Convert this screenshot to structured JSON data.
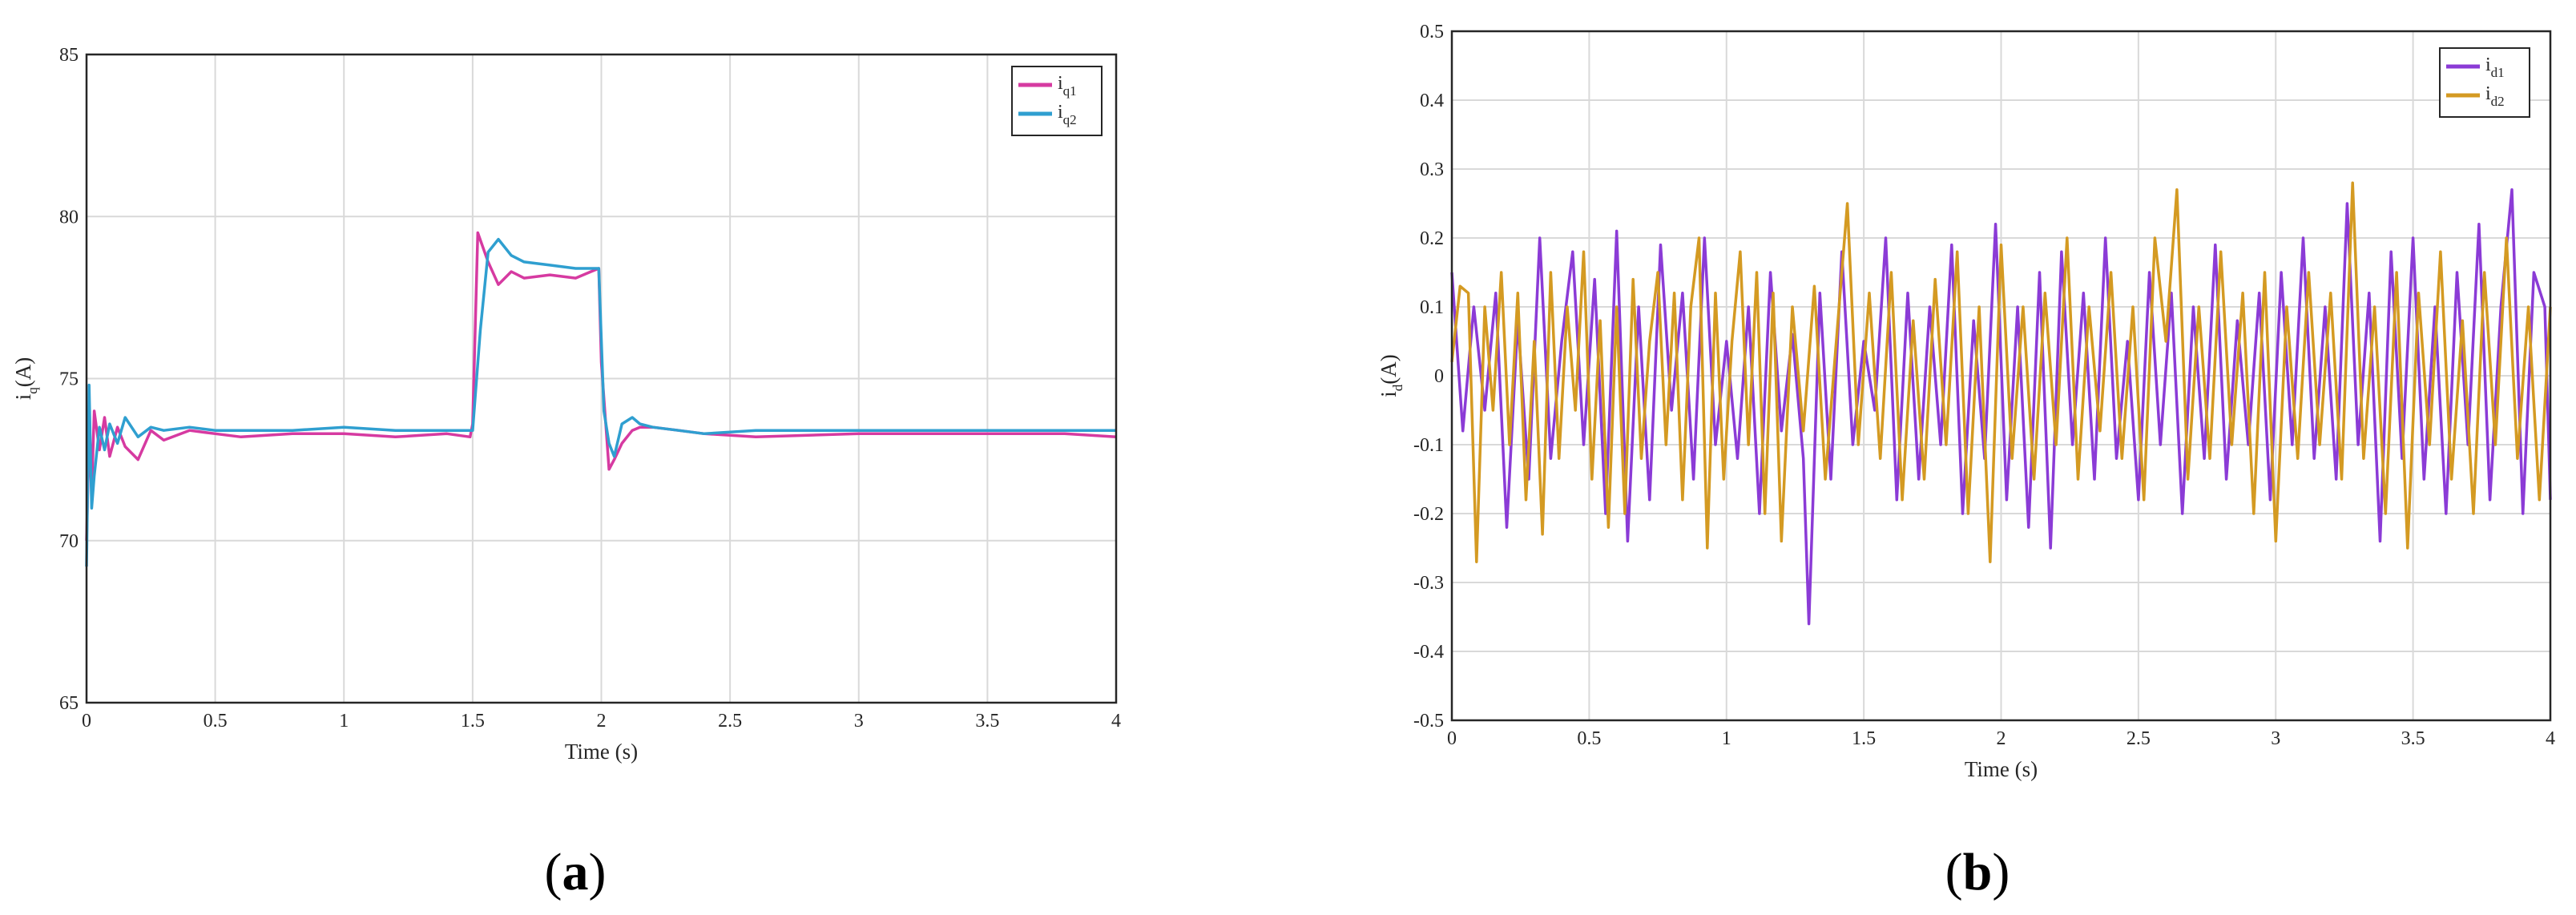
{
  "panels": [
    {
      "open": "(",
      "letter": "a",
      "close": ")"
    },
    {
      "open": "(",
      "letter": "b",
      "close": ")"
    }
  ],
  "chart_data": [
    {
      "type": "line",
      "xlabel": "Time (s)",
      "ylabel": {
        "main": "i",
        "sub": "q",
        "unit": "(A)"
      },
      "xlim": [
        0,
        4
      ],
      "ylim": [
        65,
        85
      ],
      "xticks": [
        "0",
        "0.5",
        "1",
        "1.5",
        "2",
        "2.5",
        "3",
        "3.5",
        "4"
      ],
      "yticks": [
        "65",
        "70",
        "75",
        "80",
        "85"
      ],
      "grid": true,
      "legend_position": "top-right",
      "series": [
        {
          "name": {
            "main": "i",
            "sub": "q1"
          },
          "color": "#d63aa1",
          "x": [
            0.0,
            0.01,
            0.02,
            0.03,
            0.05,
            0.07,
            0.09,
            0.12,
            0.15,
            0.2,
            0.25,
            0.3,
            0.4,
            0.5,
            0.6,
            0.8,
            1.0,
            1.2,
            1.4,
            1.49,
            1.5,
            1.52,
            1.56,
            1.6,
            1.65,
            1.7,
            1.8,
            1.9,
            1.96,
            1.99,
            2.0,
            2.03,
            2.05,
            2.08,
            2.12,
            2.15,
            2.2,
            2.3,
            2.4,
            2.6,
            3.0,
            3.4,
            3.8,
            4.0
          ],
          "y": [
            70.0,
            73.2,
            71.5,
            74.0,
            72.8,
            73.8,
            72.6,
            73.5,
            72.9,
            72.5,
            73.4,
            73.1,
            73.4,
            73.3,
            73.2,
            73.3,
            73.3,
            73.2,
            73.3,
            73.2,
            73.6,
            79.5,
            78.6,
            77.9,
            78.3,
            78.1,
            78.2,
            78.1,
            78.3,
            78.4,
            75.5,
            72.2,
            72.5,
            73.0,
            73.4,
            73.5,
            73.5,
            73.4,
            73.3,
            73.2,
            73.3,
            73.3,
            73.3,
            73.2
          ]
        },
        {
          "name": {
            "main": "i",
            "sub": "q2"
          },
          "color": "#2f9fd0",
          "x": [
            0.0,
            0.01,
            0.02,
            0.03,
            0.05,
            0.07,
            0.09,
            0.12,
            0.15,
            0.2,
            0.25,
            0.3,
            0.4,
            0.5,
            0.6,
            0.8,
            1.0,
            1.2,
            1.4,
            1.49,
            1.5,
            1.53,
            1.56,
            1.6,
            1.65,
            1.7,
            1.8,
            1.9,
            1.96,
            1.99,
            2.01,
            2.03,
            2.05,
            2.08,
            2.12,
            2.15,
            2.2,
            2.3,
            2.4,
            2.6,
            3.0,
            3.4,
            3.8,
            4.0
          ],
          "y": [
            69.2,
            74.8,
            71.0,
            72.0,
            73.5,
            72.8,
            73.6,
            73.0,
            73.8,
            73.2,
            73.5,
            73.4,
            73.5,
            73.4,
            73.4,
            73.4,
            73.5,
            73.4,
            73.4,
            73.4,
            73.4,
            76.5,
            78.9,
            79.3,
            78.8,
            78.6,
            78.5,
            78.4,
            78.4,
            78.4,
            74.0,
            73.0,
            72.6,
            73.6,
            73.8,
            73.6,
            73.5,
            73.4,
            73.3,
            73.4,
            73.4,
            73.4,
            73.4,
            73.4
          ]
        }
      ]
    },
    {
      "type": "line",
      "xlabel": "Time (s)",
      "ylabel": {
        "main": "i",
        "sub": "d",
        "unit": "(A)"
      },
      "xlim": [
        0,
        4
      ],
      "ylim": [
        -0.5,
        0.5
      ],
      "xticks": [
        "0",
        "0.5",
        "1",
        "1.5",
        "2",
        "2.5",
        "3",
        "3.5",
        "4"
      ],
      "yticks": [
        "-0.5",
        "-0.4",
        "-0.3",
        "-0.2",
        "-0.1",
        "0",
        "0.1",
        "0.2",
        "0.3",
        "0.4",
        "0.5"
      ],
      "grid": true,
      "legend_position": "top-right",
      "series": [
        {
          "name": {
            "main": "i",
            "sub": "d1"
          },
          "color": "#8b3bd6",
          "x": [
            0.0,
            0.04,
            0.08,
            0.12,
            0.16,
            0.2,
            0.24,
            0.28,
            0.32,
            0.36,
            0.4,
            0.44,
            0.48,
            0.52,
            0.56,
            0.6,
            0.64,
            0.68,
            0.72,
            0.76,
            0.8,
            0.84,
            0.88,
            0.92,
            0.96,
            1.0,
            1.04,
            1.08,
            1.12,
            1.16,
            1.2,
            1.24,
            1.28,
            1.3,
            1.34,
            1.38,
            1.42,
            1.46,
            1.5,
            1.54,
            1.58,
            1.62,
            1.66,
            1.7,
            1.74,
            1.78,
            1.82,
            1.86,
            1.9,
            1.94,
            1.98,
            2.02,
            2.06,
            2.1,
            2.14,
            2.18,
            2.22,
            2.26,
            2.3,
            2.34,
            2.38,
            2.42,
            2.46,
            2.5,
            2.54,
            2.58,
            2.62,
            2.66,
            2.7,
            2.74,
            2.78,
            2.82,
            2.86,
            2.9,
            2.94,
            2.98,
            3.02,
            3.06,
            3.1,
            3.14,
            3.18,
            3.22,
            3.26,
            3.3,
            3.34,
            3.38,
            3.42,
            3.46,
            3.5,
            3.54,
            3.58,
            3.62,
            3.66,
            3.7,
            3.74,
            3.78,
            3.82,
            3.86,
            3.9,
            3.94,
            3.98,
            4.0
          ],
          "y": [
            0.15,
            -0.08,
            0.1,
            -0.05,
            0.12,
            -0.22,
            0.08,
            -0.15,
            0.2,
            -0.12,
            0.05,
            0.18,
            -0.1,
            0.14,
            -0.2,
            0.21,
            -0.24,
            0.1,
            -0.18,
            0.19,
            -0.05,
            0.12,
            -0.15,
            0.2,
            -0.1,
            0.05,
            -0.12,
            0.1,
            -0.2,
            0.15,
            -0.08,
            0.06,
            -0.12,
            -0.36,
            0.12,
            -0.15,
            0.18,
            -0.1,
            0.05,
            -0.05,
            0.2,
            -0.18,
            0.12,
            -0.15,
            0.1,
            -0.1,
            0.19,
            -0.2,
            0.08,
            -0.12,
            0.22,
            -0.18,
            0.1,
            -0.22,
            0.15,
            -0.25,
            0.18,
            -0.1,
            0.12,
            -0.15,
            0.2,
            -0.12,
            0.05,
            -0.18,
            0.15,
            -0.1,
            0.12,
            -0.2,
            0.1,
            -0.12,
            0.19,
            -0.15,
            0.08,
            -0.1,
            0.12,
            -0.18,
            0.15,
            -0.1,
            0.2,
            -0.12,
            0.1,
            -0.15,
            0.25,
            -0.1,
            0.12,
            -0.24,
            0.18,
            -0.12,
            0.2,
            -0.15,
            0.1,
            -0.2,
            0.15,
            -0.1,
            0.22,
            -0.18,
            0.1,
            0.27,
            -0.2,
            0.15,
            0.1,
            -0.18
          ]
        },
        {
          "name": {
            "main": "i",
            "sub": "d2"
          },
          "color": "#d49a22",
          "x": [
            0.0,
            0.03,
            0.06,
            0.09,
            0.12,
            0.15,
            0.18,
            0.21,
            0.24,
            0.27,
            0.3,
            0.33,
            0.36,
            0.39,
            0.42,
            0.45,
            0.48,
            0.51,
            0.54,
            0.57,
            0.6,
            0.63,
            0.66,
            0.69,
            0.72,
            0.75,
            0.78,
            0.81,
            0.84,
            0.87,
            0.9,
            0.93,
            0.96,
            0.99,
            1.02,
            1.05,
            1.08,
            1.11,
            1.14,
            1.17,
            1.2,
            1.24,
            1.28,
            1.32,
            1.36,
            1.4,
            1.44,
            1.48,
            1.52,
            1.56,
            1.6,
            1.64,
            1.68,
            1.72,
            1.76,
            1.8,
            1.84,
            1.88,
            1.92,
            1.96,
            2.0,
            2.04,
            2.08,
            2.12,
            2.16,
            2.2,
            2.24,
            2.28,
            2.32,
            2.36,
            2.4,
            2.44,
            2.48,
            2.52,
            2.56,
            2.6,
            2.64,
            2.68,
            2.72,
            2.76,
            2.8,
            2.84,
            2.88,
            2.92,
            2.96,
            3.0,
            3.04,
            3.08,
            3.12,
            3.16,
            3.2,
            3.24,
            3.28,
            3.32,
            3.36,
            3.4,
            3.44,
            3.48,
            3.52,
            3.56,
            3.6,
            3.64,
            3.68,
            3.72,
            3.76,
            3.8,
            3.84,
            3.88,
            3.92,
            3.96,
            4.0
          ],
          "y": [
            0.02,
            0.13,
            0.12,
            -0.27,
            0.1,
            -0.05,
            0.15,
            -0.1,
            0.12,
            -0.18,
            0.05,
            -0.23,
            0.15,
            -0.12,
            0.1,
            -0.05,
            0.18,
            -0.15,
            0.08,
            -0.22,
            0.1,
            -0.2,
            0.14,
            -0.12,
            0.05,
            0.15,
            -0.1,
            0.12,
            -0.18,
            0.1,
            0.2,
            -0.25,
            0.12,
            -0.15,
            0.05,
            0.18,
            -0.1,
            0.15,
            -0.2,
            0.12,
            -0.24,
            0.1,
            -0.08,
            0.13,
            -0.15,
            0.05,
            0.25,
            -0.1,
            0.12,
            -0.12,
            0.15,
            -0.18,
            0.08,
            -0.15,
            0.14,
            -0.1,
            0.18,
            -0.2,
            0.1,
            -0.27,
            0.19,
            -0.12,
            0.1,
            -0.15,
            0.12,
            -0.1,
            0.2,
            -0.15,
            0.1,
            -0.08,
            0.15,
            -0.12,
            0.1,
            -0.18,
            0.2,
            0.05,
            0.27,
            -0.15,
            0.1,
            -0.12,
            0.18,
            -0.1,
            0.12,
            -0.2,
            0.15,
            -0.24,
            0.1,
            -0.12,
            0.15,
            -0.1,
            0.12,
            -0.15,
            0.28,
            -0.12,
            0.1,
            -0.2,
            0.15,
            -0.25,
            0.12,
            -0.1,
            0.18,
            -0.15,
            0.08,
            -0.2,
            0.15,
            -0.1,
            0.2,
            -0.12,
            0.1,
            -0.18,
            0.1
          ]
        }
      ]
    }
  ]
}
